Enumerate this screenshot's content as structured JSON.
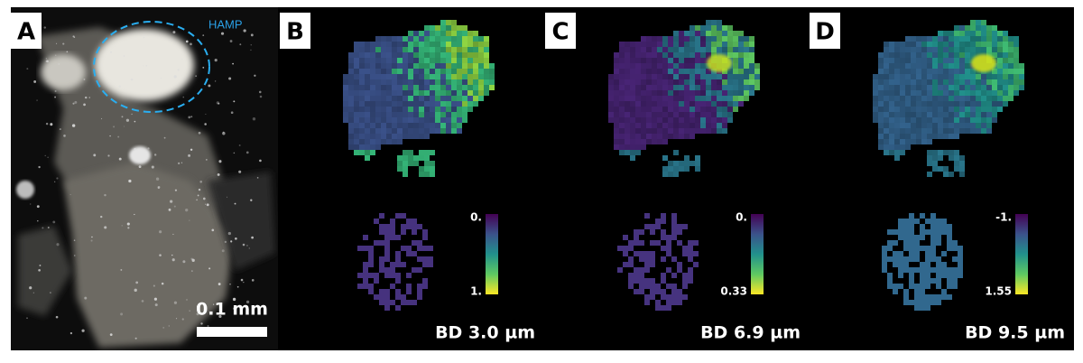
{
  "panels": [
    {
      "label": "A",
      "annotation": "HAMP",
      "scale_bar": "0.1 mm"
    },
    {
      "label": "B",
      "colorbar_top": "0.",
      "colorbar_bottom": "1.",
      "caption": "BD 3.0 µm"
    },
    {
      "label": "C",
      "colorbar_top": "0.",
      "colorbar_bottom": "0.33",
      "caption": "BD 6.9 µm"
    },
    {
      "label": "D",
      "colorbar_top": "-1.",
      "colorbar_bottom": "1.55",
      "caption": "BD 9.5 µm"
    }
  ]
}
